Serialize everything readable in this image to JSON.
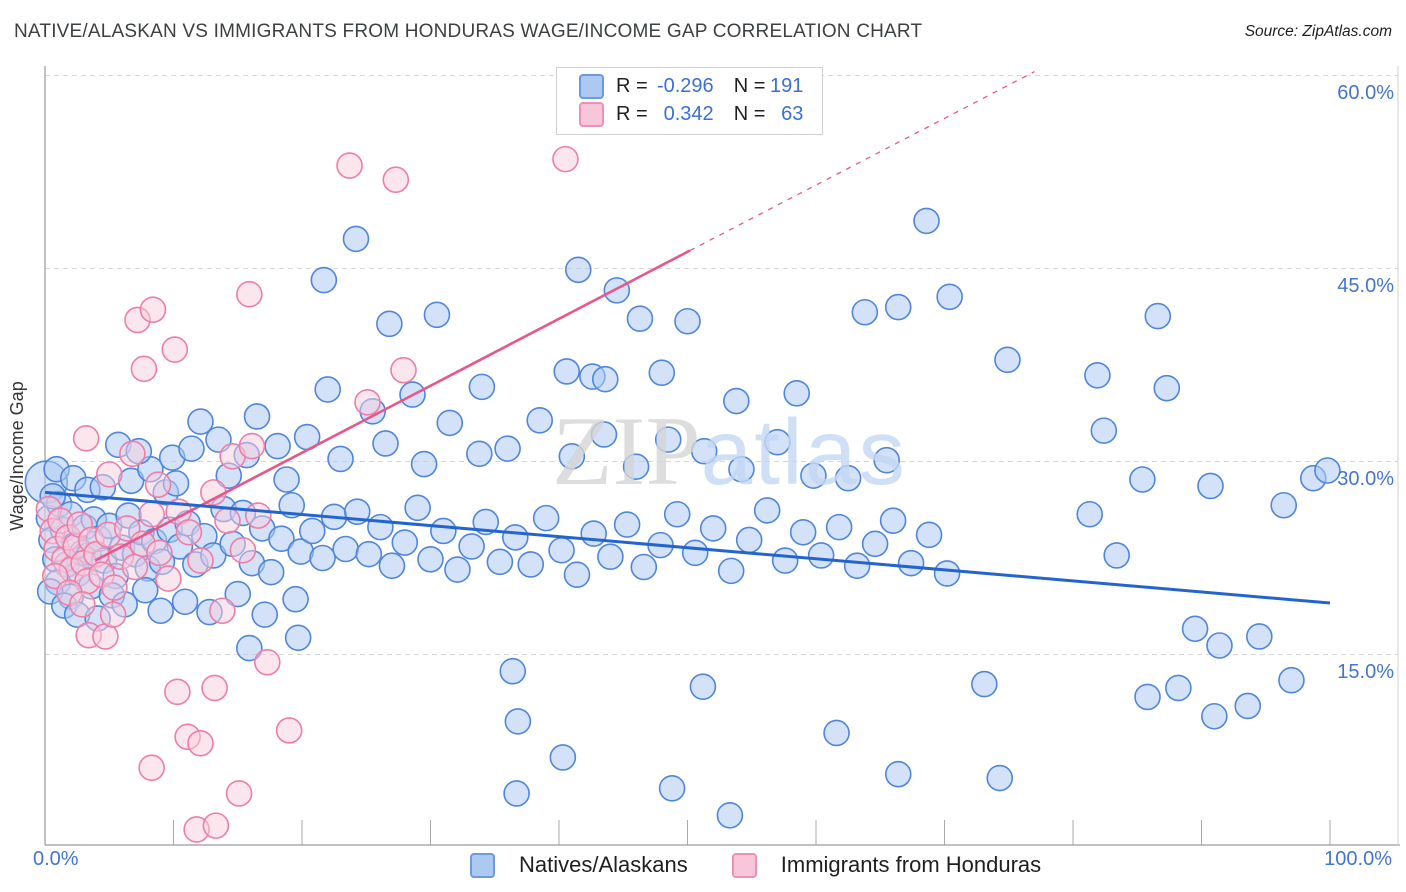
{
  "title": "NATIVE/ALASKAN VS IMMIGRANTS FROM HONDURAS WAGE/INCOME GAP CORRELATION CHART",
  "source": "Source: ZipAtlas.com",
  "y_axis_title": "Wage/Income Gap",
  "watermark": {
    "zip": "ZIP",
    "atlas": "atlas"
  },
  "legend_box": {
    "rows": [
      {
        "series": "Natives/Alaskans",
        "r_label": "R =",
        "r_value": "-0.296",
        "n_label": "N =",
        "n_value": "191"
      },
      {
        "series": "Immigrants from Honduras",
        "r_label": "R =",
        "r_value": "0.342",
        "n_label": "N =",
        "n_value": "63"
      }
    ]
  },
  "bottom_legend": {
    "blue_label": "Natives/Alaskans",
    "pink_label": "Immigrants from Honduras"
  },
  "axes": {
    "x_min_label": "0.0%",
    "x_max_label": "100.0%",
    "y_tick_labels": [
      "60.0%",
      "45.0%",
      "30.0%",
      "15.0%"
    ],
    "y_tick_values": [
      60,
      45,
      30,
      15
    ],
    "x_tick_values": [
      0,
      10,
      20,
      30,
      40,
      50,
      60,
      70,
      80,
      90,
      100
    ]
  },
  "colors": {
    "blue_stroke": "#4f86db",
    "blue_fill": "rgba(174,203,244,0.55)",
    "blue_trend": "#2465cd",
    "pink_stroke": "#ee7ea7",
    "pink_fill": "rgba(249,205,221,0.5)",
    "pink_trend": "#e8578a",
    "gridline": "#d7d7d7",
    "axis_line": "#9a9a9a",
    "tick": "#aaaaaa",
    "axis_label_blue": "#4374d3"
  },
  "chart_data": {
    "type": "scatter",
    "xlabel": "",
    "ylabel": "Wage/Income Gap",
    "xlim": [
      0,
      100
    ],
    "ylim": [
      0,
      62
    ],
    "x_unit": "%",
    "y_unit": "%",
    "grid": "horizontal-dashed",
    "legend_position": "bottom-center",
    "series": [
      {
        "name": "Natives/Alaskans",
        "R": -0.296,
        "N": 191,
        "points": [
          [
            0.1,
            28.4,
            21
          ],
          [
            0.3,
            25.6
          ],
          [
            0.5,
            23.9
          ],
          [
            0.8,
            22.4
          ],
          [
            1.1,
            26.7
          ],
          [
            1.4,
            24.7
          ],
          [
            1.7,
            22.0
          ],
          [
            2.0,
            25.9
          ],
          [
            2.3,
            23.5
          ],
          [
            2.6,
            21.3
          ],
          [
            0.6,
            27.3
          ],
          [
            1.0,
            20.6
          ],
          [
            2.0,
            19.5
          ],
          [
            2.9,
            22.9
          ],
          [
            0.4,
            19.9
          ],
          [
            1.5,
            18.8
          ],
          [
            2.5,
            18.1
          ],
          [
            3.1,
            24.9
          ],
          [
            3.4,
            22.7
          ],
          [
            3.8,
            25.5
          ],
          [
            0.9,
            29.4
          ],
          [
            2.2,
            28.7
          ],
          [
            3.6,
            20.3
          ],
          [
            3.3,
            27.8
          ],
          [
            4.2,
            24.0
          ],
          [
            4.6,
            22.3
          ],
          [
            5.0,
            25.0
          ],
          [
            5.5,
            21.1
          ],
          [
            6.0,
            23.3
          ],
          [
            6.5,
            25.8
          ],
          [
            7.0,
            22.8
          ],
          [
            7.5,
            24.5
          ],
          [
            8.0,
            21.7
          ],
          [
            8.5,
            23.8
          ],
          [
            9.1,
            22.2
          ],
          [
            9.7,
            24.7
          ],
          [
            5.2,
            19.6
          ],
          [
            6.2,
            18.9
          ],
          [
            7.8,
            20.0
          ],
          [
            9.0,
            18.4
          ],
          [
            4.5,
            28.0
          ],
          [
            6.7,
            28.5
          ],
          [
            8.2,
            29.4
          ],
          [
            9.4,
            27.6
          ],
          [
            5.7,
            31.3
          ],
          [
            7.3,
            30.8
          ],
          [
            9.9,
            30.3
          ],
          [
            4.1,
            17.8
          ],
          [
            10.5,
            23.4
          ],
          [
            11.1,
            25.2
          ],
          [
            11.7,
            22.0
          ],
          [
            12.4,
            24.2
          ],
          [
            13.1,
            22.7
          ],
          [
            13.9,
            26.3
          ],
          [
            14.6,
            23.6
          ],
          [
            15.4,
            26.0
          ],
          [
            16.1,
            22.1
          ],
          [
            16.9,
            24.8
          ],
          [
            17.6,
            21.4
          ],
          [
            18.4,
            24.0
          ],
          [
            19.2,
            26.6
          ],
          [
            19.9,
            23.0
          ],
          [
            10.9,
            19.1
          ],
          [
            12.8,
            18.3
          ],
          [
            15.0,
            19.7
          ],
          [
            17.1,
            18.1
          ],
          [
            19.5,
            19.3
          ],
          [
            11.4,
            31.0
          ],
          [
            13.5,
            31.7
          ],
          [
            15.7,
            30.5
          ],
          [
            18.1,
            31.2
          ],
          [
            12.1,
            33.1
          ],
          [
            16.5,
            33.5
          ],
          [
            10.2,
            28.3
          ],
          [
            14.3,
            28.9
          ],
          [
            18.8,
            28.6
          ],
          [
            20.8,
            24.6
          ],
          [
            21.6,
            22.5
          ],
          [
            22.5,
            25.7
          ],
          [
            23.4,
            23.2
          ],
          [
            24.3,
            26.1
          ],
          [
            25.2,
            22.8
          ],
          [
            26.1,
            24.9
          ],
          [
            27.0,
            21.9
          ],
          [
            28.0,
            23.7
          ],
          [
            29.0,
            26.4
          ],
          [
            30.0,
            22.4
          ],
          [
            31.0,
            24.6
          ],
          [
            32.1,
            21.6
          ],
          [
            33.2,
            23.4
          ],
          [
            34.3,
            25.3
          ],
          [
            35.4,
            22.2
          ],
          [
            22.0,
            35.6
          ],
          [
            25.5,
            33.9
          ],
          [
            28.6,
            35.2
          ],
          [
            31.5,
            33.0
          ],
          [
            34.0,
            35.8
          ],
          [
            20.4,
            31.9
          ],
          [
            23.0,
            30.2
          ],
          [
            26.5,
            31.4
          ],
          [
            29.5,
            29.8
          ],
          [
            33.8,
            30.6
          ],
          [
            19.7,
            16.3
          ],
          [
            15.9,
            15.5
          ],
          [
            36.6,
            24.1
          ],
          [
            37.8,
            22.0
          ],
          [
            39.0,
            25.6
          ],
          [
            40.2,
            23.1
          ],
          [
            41.4,
            21.2
          ],
          [
            42.7,
            24.4
          ],
          [
            44.0,
            22.6
          ],
          [
            45.3,
            25.1
          ],
          [
            46.6,
            21.8
          ],
          [
            47.9,
            23.5
          ],
          [
            36.0,
            31.0
          ],
          [
            38.5,
            33.2
          ],
          [
            41.0,
            30.4
          ],
          [
            43.5,
            32.1
          ],
          [
            46.0,
            29.6
          ],
          [
            48.5,
            31.7
          ],
          [
            21.7,
            44.1
          ],
          [
            24.2,
            47.3
          ],
          [
            26.8,
            40.7
          ],
          [
            30.5,
            41.4
          ],
          [
            41.5,
            44.9
          ],
          [
            44.5,
            43.3
          ],
          [
            46.3,
            41.1
          ],
          [
            40.6,
            37.0
          ],
          [
            42.6,
            36.6
          ],
          [
            43.6,
            36.4
          ],
          [
            48.0,
            36.9
          ],
          [
            50.0,
            40.9
          ],
          [
            53.8,
            34.7
          ],
          [
            58.5,
            35.3
          ],
          [
            49.2,
            25.9
          ],
          [
            50.6,
            22.9
          ],
          [
            52.0,
            24.8
          ],
          [
            53.4,
            21.5
          ],
          [
            54.8,
            23.9
          ],
          [
            56.2,
            26.2
          ],
          [
            57.6,
            22.3
          ],
          [
            59.0,
            24.5
          ],
          [
            51.3,
            30.8
          ],
          [
            54.2,
            29.4
          ],
          [
            57.0,
            31.5
          ],
          [
            59.8,
            28.9
          ],
          [
            60.4,
            22.7
          ],
          [
            61.8,
            24.9
          ],
          [
            63.2,
            21.9
          ],
          [
            64.6,
            23.6
          ],
          [
            66.0,
            25.4
          ],
          [
            67.4,
            22.1
          ],
          [
            68.8,
            24.3
          ],
          [
            70.2,
            21.3
          ],
          [
            62.5,
            28.7
          ],
          [
            65.5,
            30.1
          ],
          [
            63.8,
            41.6
          ],
          [
            66.4,
            42.0
          ],
          [
            68.6,
            48.7
          ],
          [
            70.4,
            42.8
          ],
          [
            74.9,
            37.9
          ],
          [
            81.9,
            36.7
          ],
          [
            86.6,
            41.3
          ],
          [
            87.3,
            35.7
          ],
          [
            82.4,
            32.4
          ],
          [
            85.4,
            28.6
          ],
          [
            90.7,
            28.1
          ],
          [
            96.4,
            26.6
          ],
          [
            98.7,
            28.7
          ],
          [
            99.8,
            29.3
          ],
          [
            81.3,
            25.9
          ],
          [
            83.4,
            22.7
          ],
          [
            36.4,
            13.7
          ],
          [
            36.8,
            9.8
          ],
          [
            36.7,
            4.2
          ],
          [
            40.3,
            7.0
          ],
          [
            48.8,
            4.6
          ],
          [
            53.3,
            2.5
          ],
          [
            51.2,
            12.5
          ],
          [
            61.6,
            8.9
          ],
          [
            66.4,
            5.7
          ],
          [
            74.3,
            5.4
          ],
          [
            73.1,
            12.7
          ],
          [
            85.8,
            11.7
          ],
          [
            88.2,
            12.4
          ],
          [
            91.0,
            10.2
          ],
          [
            93.6,
            11.0
          ],
          [
            91.4,
            15.7
          ],
          [
            94.5,
            16.4
          ],
          [
            97.0,
            13.0
          ],
          [
            89.5,
            17.0
          ]
        ]
      },
      {
        "name": "Immigrants from Honduras",
        "R": 0.342,
        "N": 63,
        "points": [
          [
            0.3,
            26.3
          ],
          [
            0.6,
            24.6
          ],
          [
            0.9,
            23.2
          ],
          [
            1.2,
            25.4
          ],
          [
            1.5,
            22.4
          ],
          [
            1.8,
            24.1
          ],
          [
            2.1,
            21.6
          ],
          [
            2.4,
            23.4
          ],
          [
            2.7,
            25.1
          ],
          [
            3.0,
            22.1
          ],
          [
            3.3,
            20.7
          ],
          [
            3.6,
            23.9
          ],
          [
            0.8,
            21.1
          ],
          [
            1.9,
            19.8
          ],
          [
            2.9,
            18.9
          ],
          [
            4.0,
            22.8
          ],
          [
            4.4,
            21.2
          ],
          [
            4.9,
            24.3
          ],
          [
            5.4,
            20.2
          ],
          [
            5.9,
            22.6
          ],
          [
            6.4,
            24.8
          ],
          [
            7.0,
            21.8
          ],
          [
            7.6,
            23.6
          ],
          [
            8.3,
            25.9
          ],
          [
            8.9,
            22.9
          ],
          [
            9.6,
            20.9
          ],
          [
            10.4,
            26.1
          ],
          [
            11.2,
            24.5
          ],
          [
            12.1,
            22.3
          ],
          [
            13.1,
            27.6
          ],
          [
            14.2,
            25.4
          ],
          [
            15.4,
            23.1
          ],
          [
            16.6,
            25.8
          ],
          [
            3.4,
            16.5
          ],
          [
            4.7,
            16.4
          ],
          [
            5.3,
            18.1
          ],
          [
            3.2,
            31.8
          ],
          [
            5.0,
            29.0
          ],
          [
            6.8,
            30.6
          ],
          [
            8.8,
            28.2
          ],
          [
            14.6,
            30.4
          ],
          [
            16.1,
            31.2
          ],
          [
            7.2,
            41.0
          ],
          [
            8.4,
            41.8
          ],
          [
            10.1,
            38.7
          ],
          [
            7.7,
            37.2
          ],
          [
            15.9,
            43.0
          ],
          [
            25.1,
            34.6
          ],
          [
            27.9,
            37.1
          ],
          [
            13.8,
            18.4
          ],
          [
            17.3,
            14.4
          ],
          [
            23.7,
            53.0
          ],
          [
            27.3,
            51.9
          ],
          [
            40.5,
            53.5
          ],
          [
            10.3,
            12.1
          ],
          [
            13.2,
            12.4
          ],
          [
            11.1,
            8.6
          ],
          [
            12.1,
            8.1
          ],
          [
            8.3,
            6.2
          ],
          [
            19.0,
            9.1
          ],
          [
            15.1,
            4.2
          ],
          [
            11.8,
            1.4
          ],
          [
            13.3,
            1.7
          ]
        ]
      }
    ],
    "trend_lines": [
      {
        "series": "Natives/Alaskans",
        "style": "solid",
        "x0": 0,
        "y0": 27.6,
        "x1": 100,
        "y1": 19.0
      },
      {
        "series": "Immigrants from Honduras",
        "style": "solid",
        "x0": 3.9,
        "y0": 22.3,
        "x1": 50.2,
        "y1": 46.4
      },
      {
        "series": "Immigrants from Honduras",
        "style": "dashed",
        "x0": 50.2,
        "y0": 46.4,
        "x1": 77.0,
        "y1": 60.3
      }
    ]
  }
}
